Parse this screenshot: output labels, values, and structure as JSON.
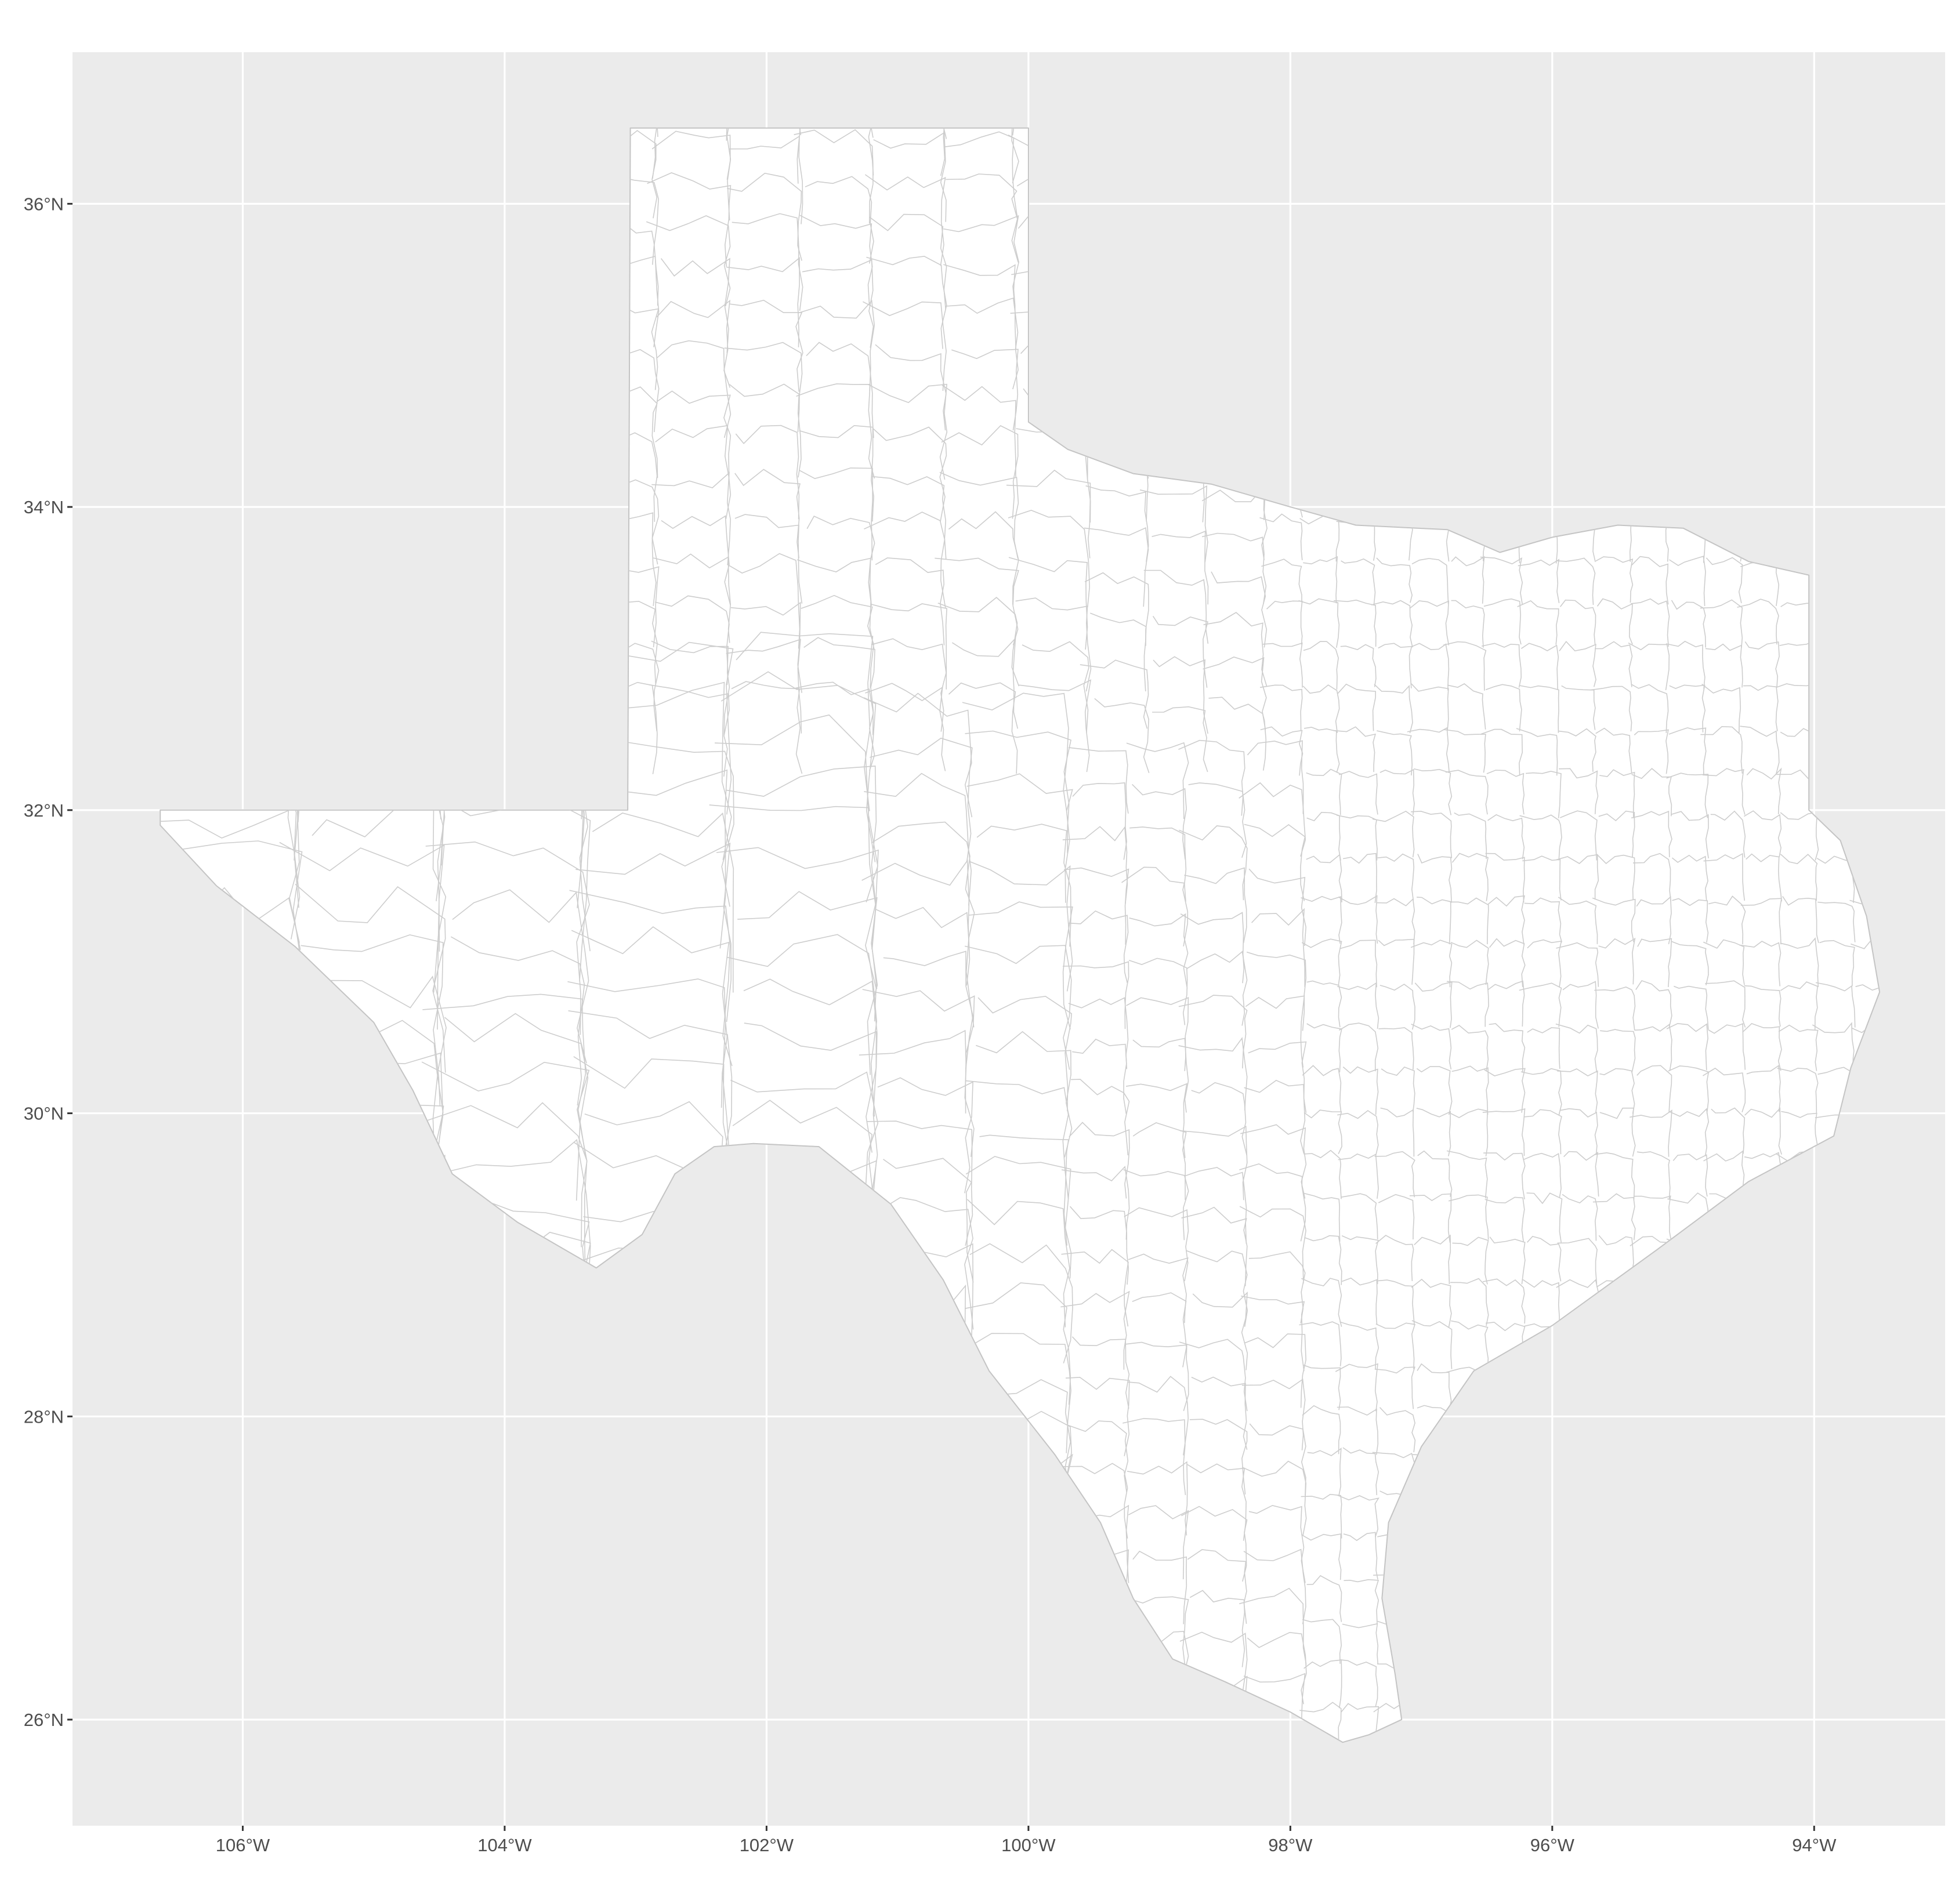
{
  "map": {
    "panel_color": "#ebebeb",
    "gridline_color": "#ffffff",
    "region_fill": "#ffffff",
    "boundary_color": "#c4c4c4",
    "region": "Texas",
    "x_axis": {
      "ticks": [
        {
          "value": -106,
          "label": "106°W"
        },
        {
          "value": -104,
          "label": "104°W"
        },
        {
          "value": -102,
          "label": "102°W"
        },
        {
          "value": -100,
          "label": "100°W"
        },
        {
          "value": -98,
          "label": "98°W"
        },
        {
          "value": -96,
          "label": "96°W"
        },
        {
          "value": -94,
          "label": "94°W"
        }
      ],
      "range": [
        -107.3,
        -93.0
      ]
    },
    "y_axis": {
      "ticks": [
        {
          "value": 26,
          "label": "26°N"
        },
        {
          "value": 28,
          "label": "28°N"
        },
        {
          "value": 30,
          "label": "30°N"
        },
        {
          "value": 32,
          "label": "32°N"
        },
        {
          "value": 34,
          "label": "34°N"
        },
        {
          "value": 36,
          "label": "36°N"
        }
      ],
      "range": [
        25.3,
        37.0
      ]
    },
    "outline_lonlat": [
      [
        -103.04,
        36.5
      ],
      [
        -100.0,
        36.5
      ],
      [
        -100.0,
        34.56
      ],
      [
        -99.7,
        34.38
      ],
      [
        -99.2,
        34.22
      ],
      [
        -98.6,
        34.15
      ],
      [
        -98.0,
        34.0
      ],
      [
        -97.5,
        33.88
      ],
      [
        -96.8,
        33.85
      ],
      [
        -96.4,
        33.7
      ],
      [
        -96.0,
        33.8
      ],
      [
        -95.5,
        33.88
      ],
      [
        -95.0,
        33.86
      ],
      [
        -94.5,
        33.64
      ],
      [
        -94.04,
        33.55
      ],
      [
        -94.04,
        32.0
      ],
      [
        -93.8,
        31.8
      ],
      [
        -93.6,
        31.3
      ],
      [
        -93.5,
        30.8
      ],
      [
        -93.72,
        30.3
      ],
      [
        -93.85,
        29.85
      ],
      [
        -94.5,
        29.55
      ],
      [
        -95.2,
        29.1
      ],
      [
        -96.0,
        28.6
      ],
      [
        -96.6,
        28.3
      ],
      [
        -97.0,
        27.8
      ],
      [
        -97.25,
        27.3
      ],
      [
        -97.3,
        26.8
      ],
      [
        -97.2,
        26.3
      ],
      [
        -97.15,
        26.0
      ],
      [
        -97.4,
        25.9
      ],
      [
        -97.6,
        25.85
      ],
      [
        -98.0,
        26.05
      ],
      [
        -98.5,
        26.25
      ],
      [
        -98.9,
        26.4
      ],
      [
        -99.2,
        26.8
      ],
      [
        -99.45,
        27.3
      ],
      [
        -99.8,
        27.75
      ],
      [
        -100.3,
        28.3
      ],
      [
        -100.65,
        28.9
      ],
      [
        -101.05,
        29.4
      ],
      [
        -101.6,
        29.78
      ],
      [
        -102.1,
        29.8
      ],
      [
        -102.4,
        29.78
      ],
      [
        -102.7,
        29.6
      ],
      [
        -102.95,
        29.2
      ],
      [
        -103.3,
        28.98
      ],
      [
        -103.9,
        29.28
      ],
      [
        -104.4,
        29.6
      ],
      [
        -104.7,
        30.15
      ],
      [
        -105.0,
        30.6
      ],
      [
        -105.6,
        31.1
      ],
      [
        -106.2,
        31.5
      ],
      [
        -106.63,
        31.9
      ],
      [
        -106.63,
        32.0
      ],
      [
        -103.06,
        32.0
      ],
      [
        -103.04,
        36.5
      ]
    ]
  }
}
